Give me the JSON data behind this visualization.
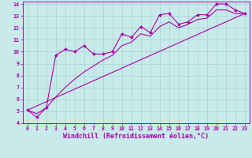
{
  "bg_color": "#c8eaea",
  "grid_color": "#a8d8d8",
  "line_color": "#aa00aa",
  "marker_color": "#aa00aa",
  "xlabel": "Windchill (Refroidissement éolien,°C)",
  "xlabel_color": "#aa00aa",
  "xlim": [
    -0.5,
    23.5
  ],
  "ylim": [
    4,
    14.2
  ],
  "xticks": [
    0,
    1,
    2,
    3,
    4,
    5,
    6,
    7,
    8,
    9,
    10,
    11,
    12,
    13,
    14,
    15,
    16,
    17,
    18,
    19,
    20,
    21,
    22,
    23
  ],
  "yticks": [
    4,
    5,
    6,
    7,
    8,
    9,
    10,
    11,
    12,
    13,
    14
  ],
  "series1_x": [
    0,
    1,
    2,
    3,
    4,
    5,
    6,
    7,
    8,
    9,
    10,
    11,
    12,
    13,
    14,
    15,
    16,
    17,
    18,
    19,
    20,
    21,
    22,
    23
  ],
  "series1_y": [
    5.1,
    4.5,
    5.3,
    9.7,
    10.2,
    10.0,
    10.5,
    9.8,
    9.8,
    10.0,
    11.5,
    11.2,
    12.1,
    11.6,
    13.1,
    13.2,
    12.3,
    12.5,
    13.1,
    13.1,
    14.0,
    14.0,
    13.5,
    13.2
  ],
  "series2_x": [
    0,
    1,
    2,
    3,
    4,
    5,
    6,
    7,
    8,
    9,
    10,
    11,
    12,
    13,
    14,
    15,
    16,
    17,
    18,
    19,
    20,
    21,
    22,
    23
  ],
  "series2_y": [
    5.1,
    4.8,
    5.3,
    6.2,
    7.0,
    7.7,
    8.3,
    8.8,
    9.3,
    9.7,
    10.5,
    10.8,
    11.5,
    11.3,
    12.1,
    12.5,
    12.0,
    12.3,
    12.7,
    12.8,
    13.5,
    13.5,
    13.2,
    13.2
  ],
  "series3_x": [
    0,
    23
  ],
  "series3_y": [
    5.1,
    13.2
  ],
  "tick_fontsize": 4.8,
  "xlabel_fontsize": 6.0
}
